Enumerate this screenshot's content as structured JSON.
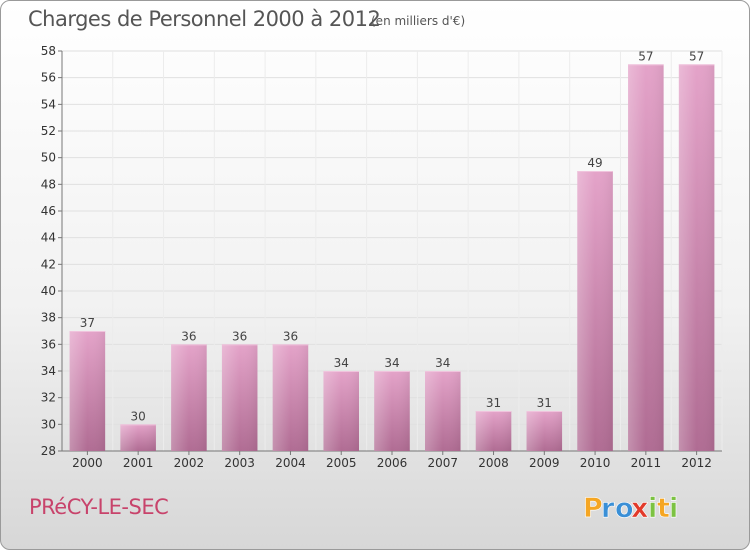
{
  "title": "Charges de Personnel 2000 à 2012",
  "subtitle": "(en milliers d'€)",
  "commune": "PRéCY-LE-SEC",
  "logo": {
    "text": "Proxiti",
    "letters": [
      "P",
      "r",
      "o",
      "x",
      "i",
      "t",
      "i"
    ],
    "colors": [
      "#f5a623",
      "#3a8fd6",
      "#3a8fd6",
      "#e23a2a",
      "#7cc242",
      "#f5a623",
      "#7cc242"
    ]
  },
  "colors": {
    "bar_top": "#e4a3c9",
    "bar_bottom": "#b06c93",
    "commune": "#c8436b"
  },
  "chart_data": {
    "type": "bar",
    "title": "Charges de Personnel 2000 à 2012",
    "subtitle": "(en milliers d'€)",
    "categories": [
      "2000",
      "2001",
      "2002",
      "2003",
      "2004",
      "2005",
      "2006",
      "2007",
      "2008",
      "2009",
      "2010",
      "2011",
      "2012"
    ],
    "values": [
      37,
      30,
      36,
      36,
      36,
      34,
      34,
      34,
      31,
      31,
      49,
      57,
      57
    ],
    "ylim": [
      28,
      58
    ],
    "yticks": [
      28,
      30,
      32,
      34,
      36,
      38,
      40,
      42,
      44,
      46,
      48,
      50,
      52,
      54,
      56,
      58
    ],
    "grid": true,
    "data_labels": true
  }
}
